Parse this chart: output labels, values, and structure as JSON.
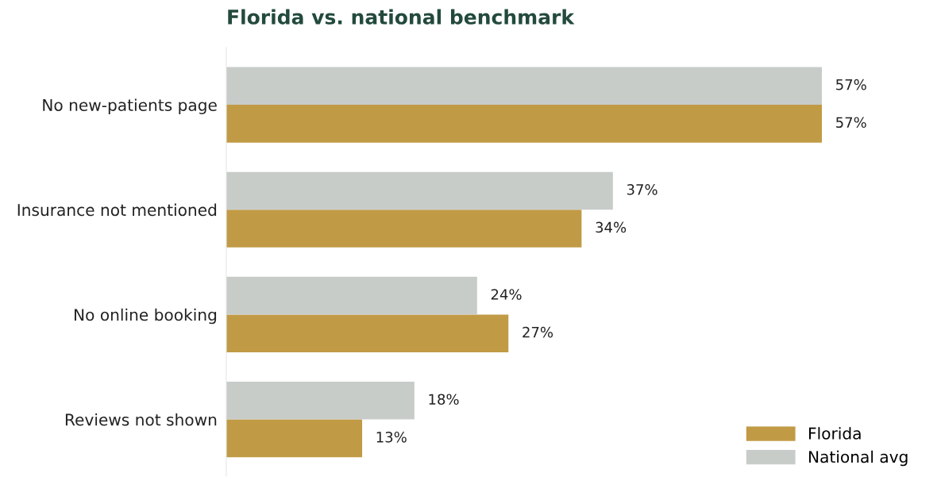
{
  "chart_data": {
    "type": "bar",
    "orientation": "horizontal",
    "title": "Florida vs. national benchmark",
    "categories": [
      "No new-patients page",
      "Insurance not mentioned",
      "No online booking",
      "Reviews not shown"
    ],
    "series": [
      {
        "name": "Florida",
        "color": "#c19a45",
        "values": [
          57,
          34,
          27,
          13
        ],
        "value_labels": [
          "57%",
          "34%",
          "27%",
          "13%"
        ]
      },
      {
        "name": "National avg",
        "color": "#c8ccc9",
        "values": [
          57,
          37,
          24,
          18
        ],
        "value_labels": [
          "57%",
          "37%",
          "24%",
          "18%"
        ]
      }
    ],
    "legend": "bottom right",
    "grid": false
  }
}
